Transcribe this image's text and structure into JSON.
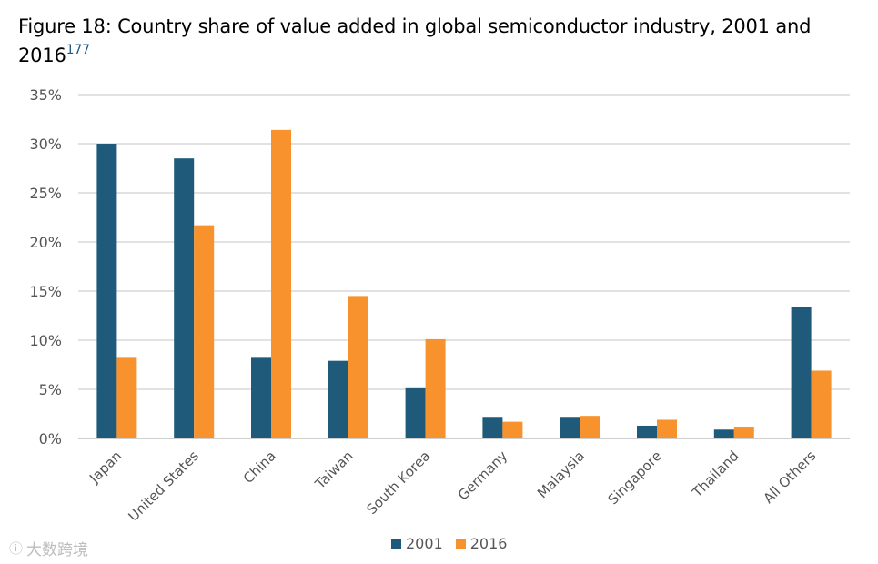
{
  "figure": {
    "title": "Figure 18: Country share of value added in global semiconductor industry, 2001 and 2016",
    "footnote": "177"
  },
  "colors": {
    "s2001": "#1f5a7a",
    "s2016": "#f7922d",
    "grid": "#d9d9d9",
    "axis": "#bfbfbf"
  },
  "watermark": {
    "icon": "wechat-like-icon",
    "glyph": "ⓘ",
    "text": "大数跨境"
  },
  "chart_data": {
    "type": "bar",
    "title": "Figure 18: Country share of value added in global semiconductor industry, 2001 and 2016",
    "xlabel": "",
    "ylabel": "",
    "ylim": [
      0,
      35
    ],
    "yticks": [
      "0%",
      "5%",
      "10%",
      "15%",
      "20%",
      "25%",
      "30%",
      "35%"
    ],
    "ytick_values": [
      0,
      5,
      10,
      15,
      20,
      25,
      30,
      35
    ],
    "grid": true,
    "legend_position": "bottom",
    "categories": [
      "Japan",
      "United States",
      "China",
      "Taiwan",
      "South Korea",
      "Germany",
      "Malaysia",
      "Singapore",
      "Thailand",
      "All Others"
    ],
    "series": [
      {
        "name": "2001",
        "values": [
          30.0,
          28.5,
          8.3,
          7.9,
          5.2,
          2.2,
          2.2,
          1.3,
          0.9,
          13.4
        ]
      },
      {
        "name": "2016",
        "values": [
          8.3,
          21.7,
          31.4,
          14.5,
          10.1,
          1.7,
          2.3,
          1.9,
          1.2,
          6.9
        ]
      }
    ]
  }
}
